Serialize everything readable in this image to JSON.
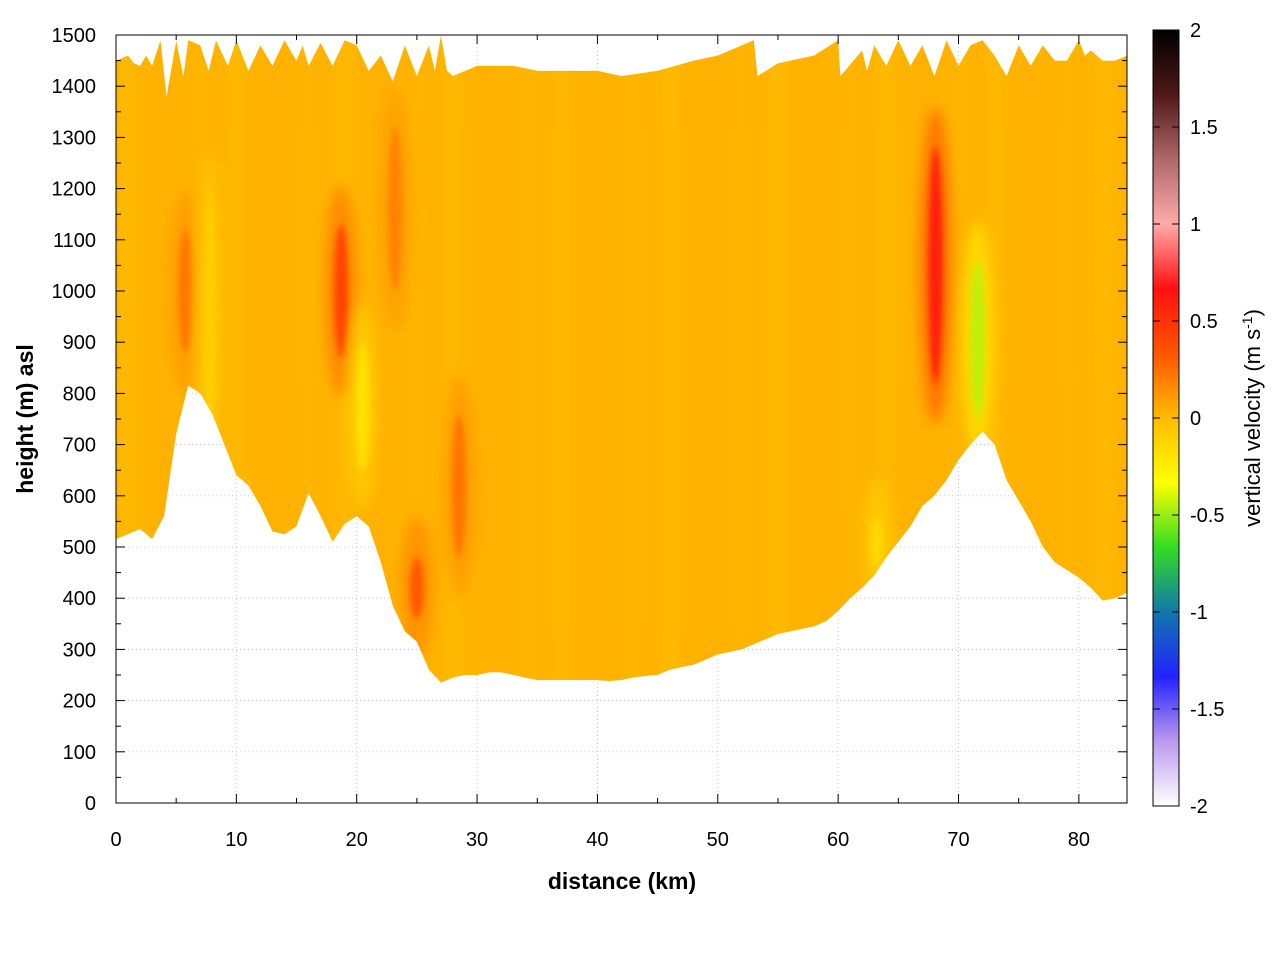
{
  "chart_data": {
    "type": "heatmap",
    "xlabel": "distance (km)",
    "ylabel": "height (m) asl",
    "xlim": [
      0,
      84
    ],
    "ylim": [
      0,
      1500
    ],
    "x_ticks": [
      "0",
      "10",
      "20",
      "30",
      "40",
      "50",
      "60",
      "70",
      "80"
    ],
    "y_ticks": [
      "0",
      "100",
      "200",
      "300",
      "400",
      "500",
      "600",
      "700",
      "800",
      "900",
      "1000",
      "1100",
      "1200",
      "1300",
      "1400",
      "1500"
    ],
    "grid": true,
    "colorbar": {
      "label": "vertical velocity (m s",
      "label_superscript": "-1",
      "label_close": ")",
      "range": [
        -2,
        2
      ],
      "ticks": [
        "2",
        "1.5",
        "1",
        "0.5",
        "0",
        "-0.5",
        "-1",
        "-1.5",
        "-2"
      ],
      "colors": [
        "#ffffff",
        "#bb99ee",
        "#2222ff",
        "#1177aa",
        "#33dd22",
        "#ffff00",
        "#ffbb00",
        "#ff5500",
        "#ff1010",
        "#ffaaaa",
        "#b06868",
        "#501818",
        "#000000"
      ]
    },
    "base_color": "#ffb300",
    "terrain_bottom": [
      [
        0,
        515
      ],
      [
        2,
        535
      ],
      [
        3,
        515
      ],
      [
        4,
        560
      ],
      [
        5,
        720
      ],
      [
        6,
        815
      ],
      [
        7,
        800
      ],
      [
        8,
        760
      ],
      [
        9,
        700
      ],
      [
        10,
        640
      ],
      [
        11,
        620
      ],
      [
        12,
        580
      ],
      [
        13,
        530
      ],
      [
        14,
        525
      ],
      [
        15,
        540
      ],
      [
        16,
        605
      ],
      [
        17,
        560
      ],
      [
        18,
        510
      ],
      [
        19,
        545
      ],
      [
        20,
        560
      ],
      [
        21,
        540
      ],
      [
        22,
        470
      ],
      [
        23,
        385
      ],
      [
        24,
        335
      ],
      [
        25,
        315
      ],
      [
        26,
        260
      ],
      [
        27,
        235
      ],
      [
        28,
        245
      ],
      [
        29,
        250
      ],
      [
        30,
        250
      ],
      [
        31,
        255
      ],
      [
        32,
        255
      ],
      [
        33,
        250
      ],
      [
        34,
        245
      ],
      [
        35,
        240
      ],
      [
        36,
        240
      ],
      [
        37,
        240
      ],
      [
        38,
        240
      ],
      [
        39,
        240
      ],
      [
        40,
        240
      ],
      [
        41,
        238
      ],
      [
        42,
        240
      ],
      [
        43,
        245
      ],
      [
        44,
        248
      ],
      [
        45,
        250
      ],
      [
        46,
        260
      ],
      [
        47,
        265
      ],
      [
        48,
        270
      ],
      [
        49,
        280
      ],
      [
        50,
        290
      ],
      [
        51,
        295
      ],
      [
        52,
        300
      ],
      [
        53,
        310
      ],
      [
        54,
        320
      ],
      [
        55,
        330
      ],
      [
        56,
        335
      ],
      [
        57,
        340
      ],
      [
        58,
        345
      ],
      [
        59,
        355
      ],
      [
        60,
        375
      ],
      [
        61,
        400
      ],
      [
        62,
        420
      ],
      [
        63,
        445
      ],
      [
        64,
        480
      ],
      [
        65,
        510
      ],
      [
        66,
        540
      ],
      [
        67,
        580
      ],
      [
        68,
        600
      ],
      [
        69,
        630
      ],
      [
        70,
        670
      ],
      [
        71,
        700
      ],
      [
        72,
        725
      ],
      [
        73,
        700
      ],
      [
        74,
        630
      ],
      [
        75,
        590
      ],
      [
        76,
        550
      ],
      [
        77,
        500
      ],
      [
        78,
        470
      ],
      [
        79,
        455
      ],
      [
        80,
        440
      ],
      [
        81,
        420
      ],
      [
        82,
        395
      ],
      [
        83,
        400
      ],
      [
        84,
        410
      ]
    ],
    "top_boundary": [
      [
        0,
        1450
      ],
      [
        1,
        1460
      ],
      [
        1.5,
        1445
      ],
      [
        2,
        1440
      ],
      [
        2.5,
        1460
      ],
      [
        3,
        1440
      ],
      [
        3.7,
        1490
      ],
      [
        4.2,
        1380
      ],
      [
        5,
        1490
      ],
      [
        5.6,
        1420
      ],
      [
        6,
        1490
      ],
      [
        7,
        1480
      ],
      [
        7.7,
        1430
      ],
      [
        8.3,
        1490
      ],
      [
        9.3,
        1440
      ],
      [
        10,
        1490
      ],
      [
        11,
        1430
      ],
      [
        12,
        1480
      ],
      [
        13,
        1440
      ],
      [
        14,
        1490
      ],
      [
        15,
        1450
      ],
      [
        15.5,
        1480
      ],
      [
        16,
        1440
      ],
      [
        17,
        1485
      ],
      [
        18,
        1440
      ],
      [
        19,
        1490
      ],
      [
        20,
        1480
      ],
      [
        21,
        1430
      ],
      [
        22,
        1460
      ],
      [
        23,
        1410
      ],
      [
        24,
        1480
      ],
      [
        25,
        1420
      ],
      [
        26,
        1480
      ],
      [
        26.5,
        1430
      ],
      [
        27,
        1500
      ],
      [
        27.5,
        1430
      ],
      [
        28,
        1420
      ],
      [
        30,
        1440
      ],
      [
        33,
        1440
      ],
      [
        35,
        1430
      ],
      [
        40,
        1430
      ],
      [
        42,
        1420
      ],
      [
        45,
        1430
      ],
      [
        48,
        1450
      ],
      [
        50,
        1460
      ],
      [
        52,
        1480
      ],
      [
        53,
        1490
      ],
      [
        53.3,
        1420
      ],
      [
        55,
        1445
      ],
      [
        58,
        1460
      ],
      [
        60,
        1490
      ],
      [
        60.2,
        1420
      ],
      [
        62,
        1470
      ],
      [
        62.4,
        1430
      ],
      [
        63,
        1480
      ],
      [
        64,
        1440
      ],
      [
        65,
        1490
      ],
      [
        66,
        1440
      ],
      [
        67,
        1480
      ],
      [
        68,
        1420
      ],
      [
        69,
        1490
      ],
      [
        70,
        1440
      ],
      [
        71,
        1480
      ],
      [
        72,
        1490
      ],
      [
        73,
        1460
      ],
      [
        74,
        1420
      ],
      [
        75,
        1480
      ],
      [
        76,
        1440
      ],
      [
        77,
        1480
      ],
      [
        78,
        1450
      ],
      [
        79,
        1450
      ],
      [
        80,
        1490
      ],
      [
        80.5,
        1460
      ],
      [
        81,
        1470
      ],
      [
        82,
        1450
      ],
      [
        83,
        1450
      ],
      [
        84,
        1460
      ]
    ],
    "features": [
      {
        "x": 5.8,
        "y_range": [
          880,
          1120
        ],
        "value": 0.25
      },
      {
        "x": 7.8,
        "y_range": [
          700,
          1200
        ],
        "value": -0.1
      },
      {
        "x": 18.7,
        "y_range": [
          870,
          1130
        ],
        "value": 0.45
      },
      {
        "x": 20.5,
        "y_range": [
          650,
          900
        ],
        "value": -0.2
      },
      {
        "x": 23.2,
        "y_range": [
          1000,
          1320
        ],
        "value": 0.2
      },
      {
        "x": 25,
        "y_range": [
          360,
          480
        ],
        "value": 0.35
      },
      {
        "x": 28.5,
        "y_range": [
          480,
          760
        ],
        "value": 0.25
      },
      {
        "x": 68.1,
        "y_range": [
          820,
          1280
        ],
        "value": 0.65
      },
      {
        "x": 71.6,
        "y_range": [
          750,
          1060
        ],
        "value": -0.45
      },
      {
        "x": 63.2,
        "y_range": [
          460,
          560
        ],
        "value": -0.15
      }
    ]
  }
}
